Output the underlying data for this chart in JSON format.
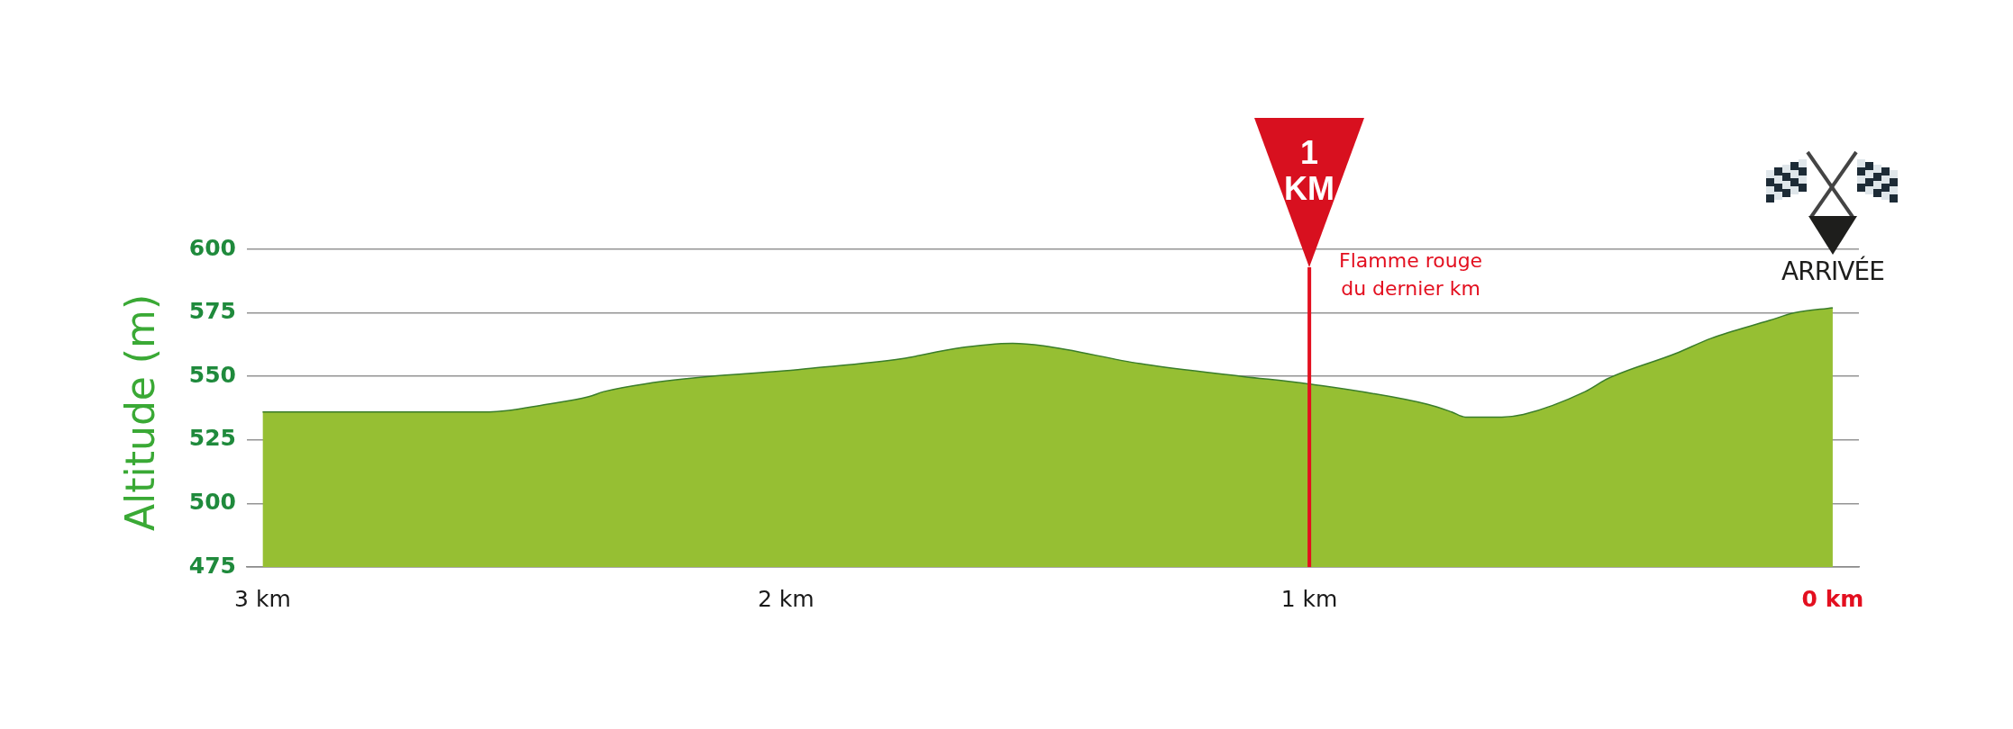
{
  "chart_data": {
    "type": "area",
    "ylabel": "Altitude (m)",
    "x": [
      3,
      2.567,
      2.457,
      2.377,
      2.348,
      2.271,
      2.146,
      2.014,
      1.962,
      1.778,
      1.676,
      1.567,
      1.508,
      1.323,
      1.129,
      1.0,
      0.774,
      0.728,
      0.702,
      0.632,
      0.591,
      0.473,
      0.431,
      0.3,
      0.232,
      0.121,
      0.073,
      0
    ],
    "series": [
      {
        "color": "#96bf33",
        "values": [
          536,
          536,
          539,
          542,
          544,
          547,
          550,
          552,
          553,
          557,
          561,
          563,
          562,
          555,
          550,
          547,
          539,
          536,
          534,
          534,
          535,
          544,
          549,
          559,
          565,
          572,
          575,
          577
        ]
      }
    ],
    "xlim": [
      3.03,
      -0.05
    ],
    "xticks": [
      {
        "value": 3,
        "label": "3 km"
      },
      {
        "value": 2,
        "label": "2 km"
      },
      {
        "value": 1,
        "label": "1 km"
      },
      {
        "value": 0,
        "label": "0 km"
      }
    ],
    "ylim": [
      475,
      600
    ],
    "yticks": [
      475,
      500,
      525,
      550,
      575,
      600
    ],
    "grid": "y",
    "legend": false,
    "marker": "none",
    "ref_lines": [
      {
        "axis": "x",
        "value": 1,
        "label": "Flamme rouge du dernier km",
        "color": "#e30f1f"
      }
    ],
    "annotations": [
      "1 KM",
      "ARRIVÉE"
    ]
  }
}
